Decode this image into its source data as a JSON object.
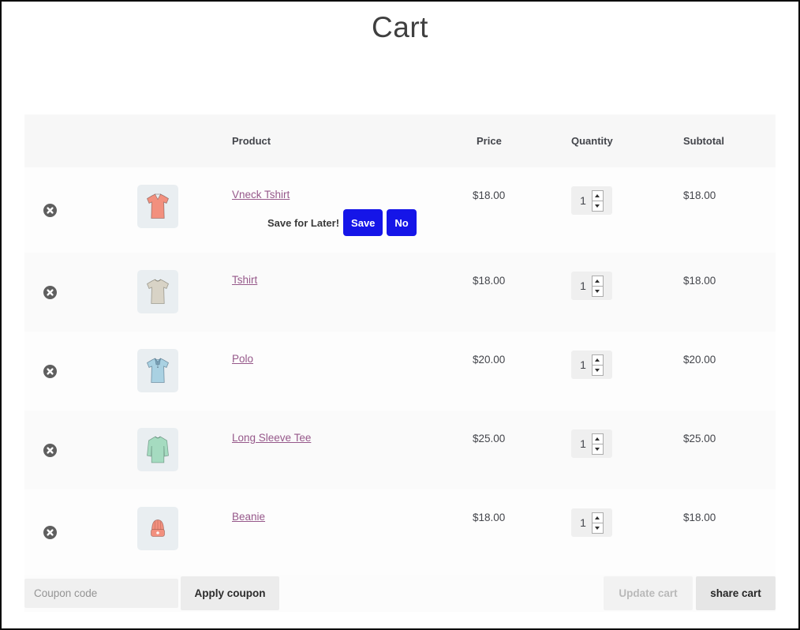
{
  "page": {
    "title": "Cart"
  },
  "table": {
    "headers": {
      "product": "Product",
      "price": "Price",
      "quantity": "Quantity",
      "subtotal": "Subtotal"
    },
    "rows": [
      {
        "name": "Vneck Tshirt",
        "price": "$18.00",
        "quantity": "1",
        "subtotal": "$18.00",
        "image": "vneck-tshirt",
        "image_color": "#f2907e",
        "save_for_later": {
          "label": "Save for Later!",
          "save_button": "Save",
          "no_button": "No"
        }
      },
      {
        "name": "Tshirt",
        "price": "$18.00",
        "quantity": "1",
        "subtotal": "$18.00",
        "image": "tshirt",
        "image_color": "#d8d3c6"
      },
      {
        "name": "Polo",
        "price": "$20.00",
        "quantity": "1",
        "subtotal": "$20.00",
        "image": "polo",
        "image_color": "#a9d1e2"
      },
      {
        "name": "Long Sleeve Tee",
        "price": "$25.00",
        "quantity": "1",
        "subtotal": "$25.00",
        "image": "long-sleeve-tee",
        "image_color": "#a5dbc0"
      },
      {
        "name": "Beanie",
        "price": "$18.00",
        "quantity": "1",
        "subtotal": "$18.00",
        "image": "beanie",
        "image_color": "#f2907e"
      }
    ]
  },
  "footer": {
    "coupon_placeholder": "Coupon code",
    "apply_coupon_label": "Apply coupon",
    "update_cart_label": "Update cart",
    "share_cart_label": "share cart"
  },
  "colors": {
    "link": "#96588a",
    "action_blue": "#1515e8",
    "header_bg": "#f7f7f7",
    "thumb_bg": "#e9eef1"
  }
}
